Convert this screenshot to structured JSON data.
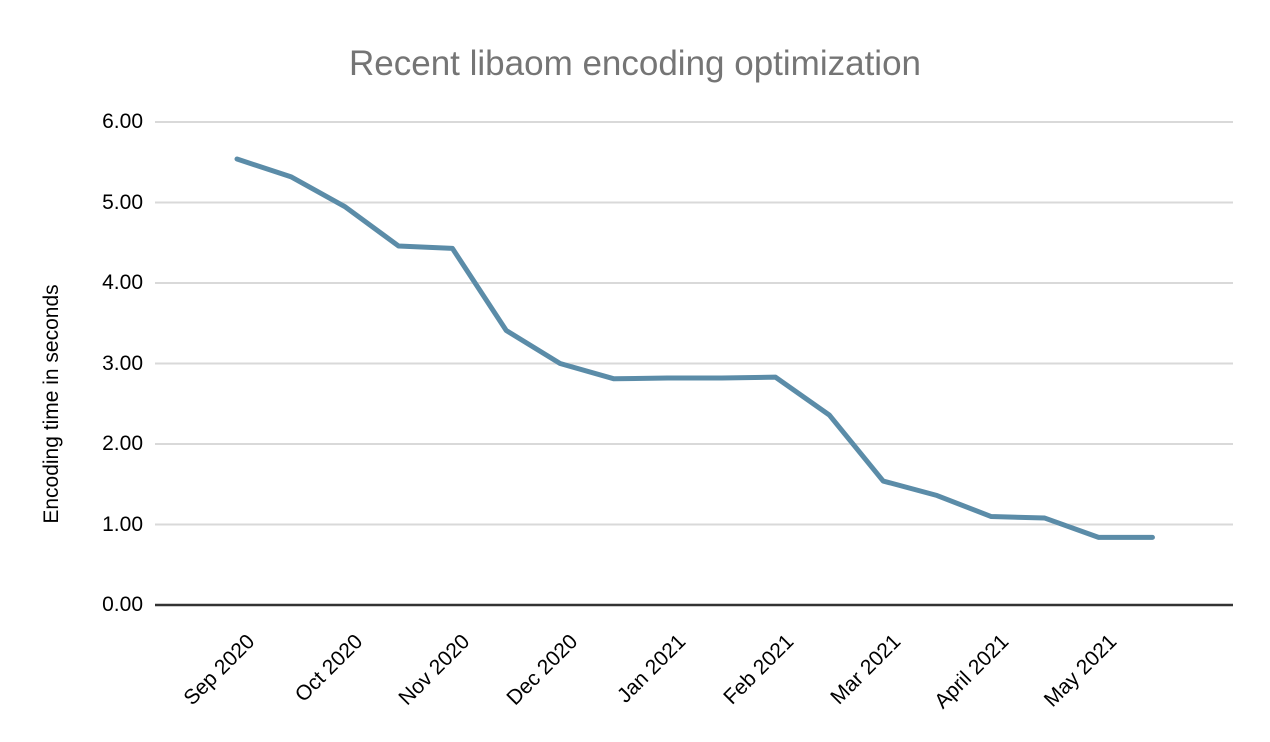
{
  "chart_data": {
    "type": "line",
    "title": "Recent libaom encoding optimization",
    "ylabel": "Encoding time in seconds",
    "xlabel": "",
    "x_tick_labels": [
      "Sep 2020",
      "Oct 2020",
      "Nov 2020",
      "Dec 2020",
      "Jan 2021",
      "Feb 2021",
      "Mar 2021",
      "April 2021",
      "May 2021"
    ],
    "y_tick_labels": [
      "0.00",
      "1.00",
      "2.00",
      "3.00",
      "4.00",
      "5.00",
      "6.00"
    ],
    "ylim": [
      0,
      6
    ],
    "y_tick_step": 1,
    "points_per_x_tick": 2,
    "grid": "horizontal",
    "legend": "none",
    "series": [
      {
        "values": [
          5.54,
          5.32,
          4.95,
          4.46,
          4.43,
          3.41,
          3.0,
          2.81,
          2.82,
          2.82,
          2.83,
          2.36,
          1.54,
          1.36,
          1.1,
          1.08,
          0.84,
          0.84
        ],
        "color": "#5b8ca8"
      }
    ],
    "colors": {
      "background": "#ffffff",
      "gridline": "#d9d9d9",
      "axis_line": "#333333",
      "title_text": "#757575",
      "tick_text": "#000000"
    }
  }
}
